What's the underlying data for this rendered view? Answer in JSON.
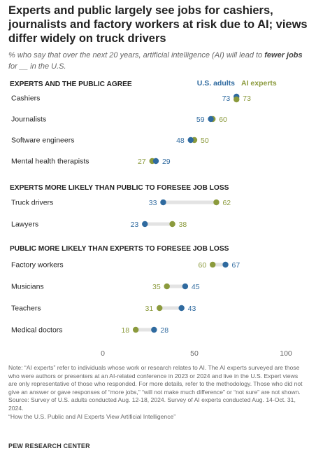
{
  "header": {
    "title": "Experts and public largely see jobs for cashiers, journalists and factory workers at risk due to AI; views differ widely on truck drivers",
    "subtitle_pre": "% who say that over the next 20 years, artificial intelligence (AI) will lead to ",
    "subtitle_bold": "fewer jobs",
    "subtitle_post": " for __ in the U.S."
  },
  "colors": {
    "us_adults": "#2f6a9f",
    "ai_experts": "#8b9a3c",
    "connector": "#e3e3e3",
    "axis_text": "#666666"
  },
  "chart_data": {
    "type": "dot",
    "series": [
      {
        "key": "us",
        "name": "U.S. adults",
        "color": "#2f6a9f"
      },
      {
        "key": "ai",
        "name": "AI experts",
        "color": "#8b9a3c"
      }
    ],
    "xlim": [
      0,
      100
    ],
    "xticks": [
      0,
      50,
      100
    ],
    "groups": [
      {
        "heading": "EXPERTS AND THE PUBLIC AGREE",
        "rows": [
          {
            "label": "Cashiers",
            "us": 73,
            "ai": 73
          },
          {
            "label": "Journalists",
            "us": 59,
            "ai": 60
          },
          {
            "label": "Software engineers",
            "us": 48,
            "ai": 50
          },
          {
            "label": "Mental health therapists",
            "us": 29,
            "ai": 27
          }
        ]
      },
      {
        "heading": "EXPERTS MORE LIKELY THAN PUBLIC TO FORESEE JOB LOSS",
        "rows": [
          {
            "label": "Truck drivers",
            "us": 33,
            "ai": 62
          },
          {
            "label": "Lawyers",
            "us": 23,
            "ai": 38
          }
        ]
      },
      {
        "heading": "PUBLIC MORE LIKELY THAN EXPERTS TO FORESEE JOB LOSS",
        "rows": [
          {
            "label": "Factory workers",
            "us": 67,
            "ai": 60
          },
          {
            "label": "Musicians",
            "us": 45,
            "ai": 35
          },
          {
            "label": "Teachers",
            "us": 43,
            "ai": 31
          },
          {
            "label": "Medical doctors",
            "us": 28,
            "ai": 18
          }
        ]
      }
    ]
  },
  "notes": [
    "Note: “AI experts” refer to individuals whose work or research relates to AI. The AI experts surveyed are those who were authors or presenters at an AI-related conference in 2023 or 2024 and live in the U.S. Expert views are only representative of those who responded. For more details, refer to the methodology. Those who did not give an answer or gave responses of “more jobs,” “will not make much difference” or “not sure” are not shown.",
    "Source: Survey of U.S. adults conducted Aug. 12-18, 2024. Survey of AI experts conducted Aug. 14-Oct. 31, 2024.",
    "“How the U.S. Public and AI Experts View Artificial Intelligence”"
  ],
  "footer": {
    "source_org": "PEW RESEARCH CENTER"
  }
}
